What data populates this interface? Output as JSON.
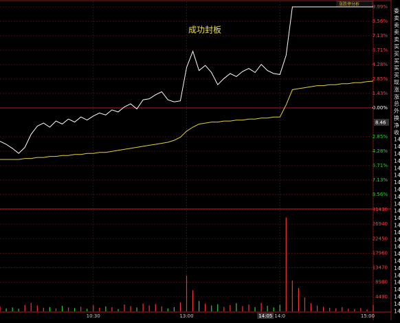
{
  "chart_data": {
    "type": "line",
    "annotation": "成功封板",
    "button": "涨跌停分析",
    "price_label": 8.46,
    "cursor_time": "14:05",
    "x": [
      0,
      4,
      8,
      12,
      16,
      20,
      24,
      28,
      32,
      36,
      40,
      44,
      48,
      52,
      56,
      60,
      64,
      68,
      72,
      76,
      80,
      84,
      88,
      92,
      96,
      100,
      104,
      108,
      112,
      116,
      120,
      124,
      128,
      132,
      136,
      140,
      144,
      148,
      152,
      156,
      160,
      164,
      168,
      172,
      176,
      180,
      184,
      188,
      192,
      196,
      200,
      204,
      208,
      212,
      216,
      220,
      224,
      228,
      232,
      236,
      240
    ],
    "xlim": [
      0,
      240
    ],
    "xticks": [
      {
        "value": 60,
        "label": "10:30"
      },
      {
        "value": 120,
        "label": "13:00"
      },
      {
        "value": 180,
        "label": "14:0"
      },
      {
        "value": 240,
        "label": "15:00"
      }
    ],
    "ylim": [
      -9.99,
      9.99
    ],
    "yticks": [
      {
        "value": 9.99,
        "label": "9.99%"
      },
      {
        "value": 8.56,
        "label": "8.56%"
      },
      {
        "value": 7.13,
        "label": "7.13%"
      },
      {
        "value": 5.71,
        "label": "5.71%"
      },
      {
        "value": 4.28,
        "label": "4.28%"
      },
      {
        "value": 2.85,
        "label": "2.85%"
      },
      {
        "value": 1.43,
        "label": "1.43%"
      },
      {
        "value": 0,
        "label": "0.00%"
      },
      {
        "value": -2.85,
        "label": "2.85%"
      },
      {
        "value": -4.28,
        "label": "4.28%"
      },
      {
        "value": -5.71,
        "label": "5.71%"
      },
      {
        "value": -7.13,
        "label": "7.13%"
      },
      {
        "value": -8.56,
        "label": "8.56%"
      }
    ],
    "series": [
      {
        "name": "价格",
        "color": "#ffffff",
        "values": [
          -3.3,
          -3.6,
          -4.0,
          -4.5,
          -3.9,
          -2.6,
          -1.8,
          -1.5,
          -1.9,
          -1.3,
          -1.6,
          -1.1,
          -1.4,
          -0.9,
          -1.2,
          -0.8,
          -0.5,
          -0.7,
          -0.2,
          -0.4,
          0.1,
          0.4,
          -0.1,
          0.8,
          0.9,
          1.3,
          1.6,
          0.8,
          0.6,
          0.7,
          4.0,
          5.6,
          3.7,
          4.2,
          3.5,
          2.3,
          2.9,
          3.4,
          3.1,
          3.6,
          3.9,
          3.5,
          4.3,
          3.7,
          3.4,
          3.3,
          5.2,
          9.99,
          9.99,
          9.99,
          9.99,
          9.99,
          9.99,
          9.99,
          9.99,
          9.99,
          9.99,
          9.99,
          9.99,
          9.99,
          9.99
        ]
      },
      {
        "name": "均价",
        "color": "#e6d23c",
        "values": [
          -5.1,
          -5.1,
          -5.1,
          -5.1,
          -5.0,
          -5.0,
          -4.9,
          -4.9,
          -4.8,
          -4.8,
          -4.7,
          -4.7,
          -4.6,
          -4.6,
          -4.5,
          -4.5,
          -4.4,
          -4.4,
          -4.3,
          -4.2,
          -4.1,
          -4.0,
          -3.9,
          -3.8,
          -3.7,
          -3.6,
          -3.5,
          -3.4,
          -3.2,
          -2.9,
          -2.3,
          -1.9,
          -1.6,
          -1.5,
          -1.4,
          -1.4,
          -1.3,
          -1.3,
          -1.2,
          -1.2,
          -1.1,
          -1.1,
          -1.0,
          -1.0,
          -0.9,
          -0.9,
          0.3,
          1.8,
          1.9,
          2.0,
          2.1,
          2.2,
          2.2,
          2.3,
          2.3,
          2.4,
          2.4,
          2.5,
          2.5,
          2.6,
          2.65
        ]
      }
    ],
    "volume": {
      "values": [
        1500,
        900,
        1200,
        800,
        2000,
        2600,
        1800,
        1100,
        1300,
        900,
        1700,
        1200,
        1000,
        1400,
        800,
        1900,
        1100,
        1500,
        1300,
        700,
        2100,
        1600,
        1200,
        2400,
        1800,
        2200,
        1500,
        900,
        1300,
        2700,
        11000,
        6500,
        3200,
        2400,
        1800,
        2200,
        1400,
        1900,
        2500,
        1600,
        2100,
        1300,
        2600,
        1700,
        1200,
        2000,
        29000,
        9500,
        7200,
        4300,
        2500,
        1800,
        1400,
        1100,
        900,
        1300,
        800,
        700,
        1000,
        600,
        2000
      ],
      "ylim": [
        0,
        31430
      ],
      "yticks": [
        31430,
        26940,
        22450,
        17960,
        13470,
        8980,
        4490
      ]
    },
    "grid": true,
    "side_labels": [
      "委",
      "卖",
      "卖",
      "卖",
      "卖",
      "买",
      "买",
      "买",
      "买",
      "买",
      "现",
      "涨",
      "涨",
      "总",
      "外",
      "换",
      "净",
      "收",
      "14",
      "14",
      "14",
      "14",
      "14",
      "14",
      "14",
      "14",
      "14",
      "14",
      "14",
      "14",
      "14",
      "14",
      "14",
      "14",
      "14",
      "14",
      "14",
      "14",
      "14",
      "14",
      "14",
      "14",
      "14"
    ]
  }
}
